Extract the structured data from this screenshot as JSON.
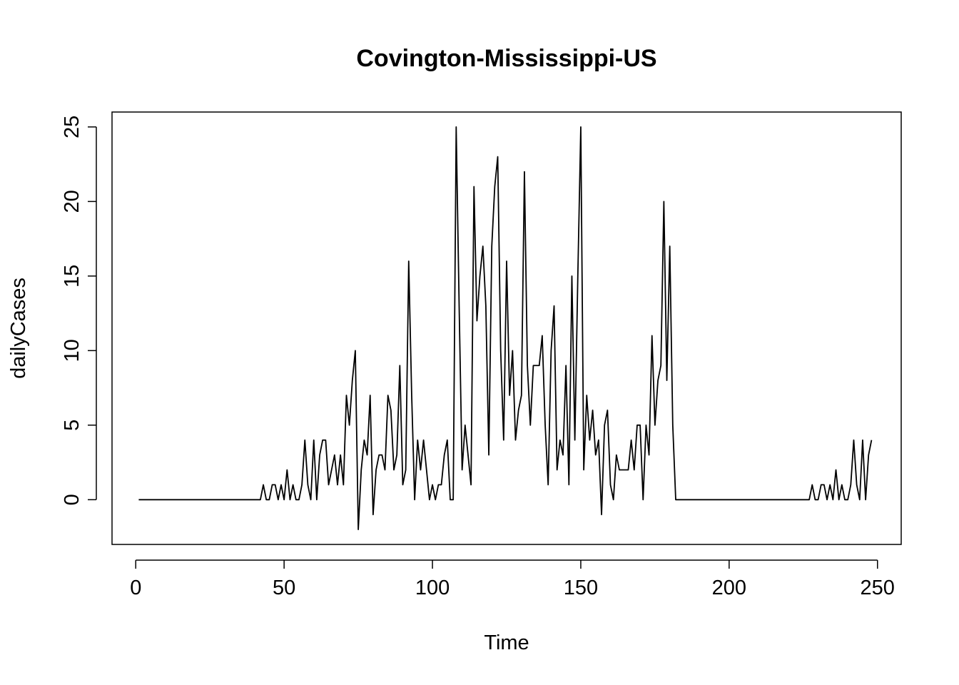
{
  "chart_data": {
    "type": "line",
    "title": "Covington-Mississippi-US",
    "xlabel": "Time",
    "ylabel": "dailyCases",
    "xlim": [
      -8,
      258
    ],
    "ylim": [
      -3,
      26
    ],
    "xticks": [
      0,
      50,
      100,
      150,
      200,
      250
    ],
    "yticks": [
      0,
      5,
      10,
      15,
      20,
      25
    ],
    "grid": false,
    "legend": "none",
    "line_color": "#000000",
    "series": [
      {
        "values": [
          0,
          0,
          0,
          0,
          0,
          0,
          0,
          0,
          0,
          0,
          0,
          0,
          0,
          0,
          0,
          0,
          0,
          0,
          0,
          0,
          0,
          0,
          0,
          0,
          0,
          0,
          0,
          0,
          0,
          0,
          0,
          0,
          0,
          0,
          0,
          0,
          0,
          0,
          0,
          0,
          0,
          0,
          1,
          0,
          0,
          1,
          1,
          0,
          1,
          0,
          2,
          0,
          1,
          0,
          0,
          1,
          4,
          1,
          0,
          4,
          0,
          3,
          4,
          4,
          1,
          2,
          3,
          1,
          3,
          1,
          7,
          5,
          8,
          10,
          -2,
          2,
          4,
          3,
          7,
          -1,
          2,
          3,
          3,
          2,
          7,
          6,
          2,
          3,
          9,
          1,
          2,
          16,
          7,
          0,
          4,
          2,
          4,
          2,
          0,
          1,
          0,
          1,
          1,
          3,
          4,
          0,
          0,
          25,
          13,
          2,
          5,
          3,
          1,
          21,
          12,
          15,
          17,
          13,
          3,
          17,
          21,
          23,
          10,
          4,
          16,
          7,
          10,
          4,
          6,
          7,
          22,
          9,
          5,
          9,
          9,
          9,
          11,
          5,
          1,
          10,
          13,
          2,
          4,
          3,
          9,
          1,
          15,
          4,
          15,
          25,
          2,
          7,
          4,
          6,
          3,
          4,
          -1,
          5,
          6,
          1,
          0,
          3,
          2,
          2,
          2,
          2,
          4,
          2,
          5,
          5,
          0,
          5,
          3,
          11,
          5,
          8,
          9,
          20,
          8,
          17,
          5,
          0,
          0,
          0,
          0,
          0,
          0,
          0,
          0,
          0,
          0,
          0,
          0,
          0,
          0,
          0,
          0,
          0,
          0,
          0,
          0,
          0,
          0,
          0,
          0,
          0,
          0,
          0,
          0,
          0,
          0,
          0,
          0,
          0,
          0,
          0,
          0,
          0,
          0,
          0,
          0,
          0,
          0,
          0,
          0,
          0,
          0,
          1,
          0,
          0,
          1,
          1,
          0,
          1,
          0,
          2,
          0,
          1,
          0,
          0,
          1,
          4,
          1,
          0,
          4,
          0,
          3,
          4
        ]
      }
    ]
  }
}
